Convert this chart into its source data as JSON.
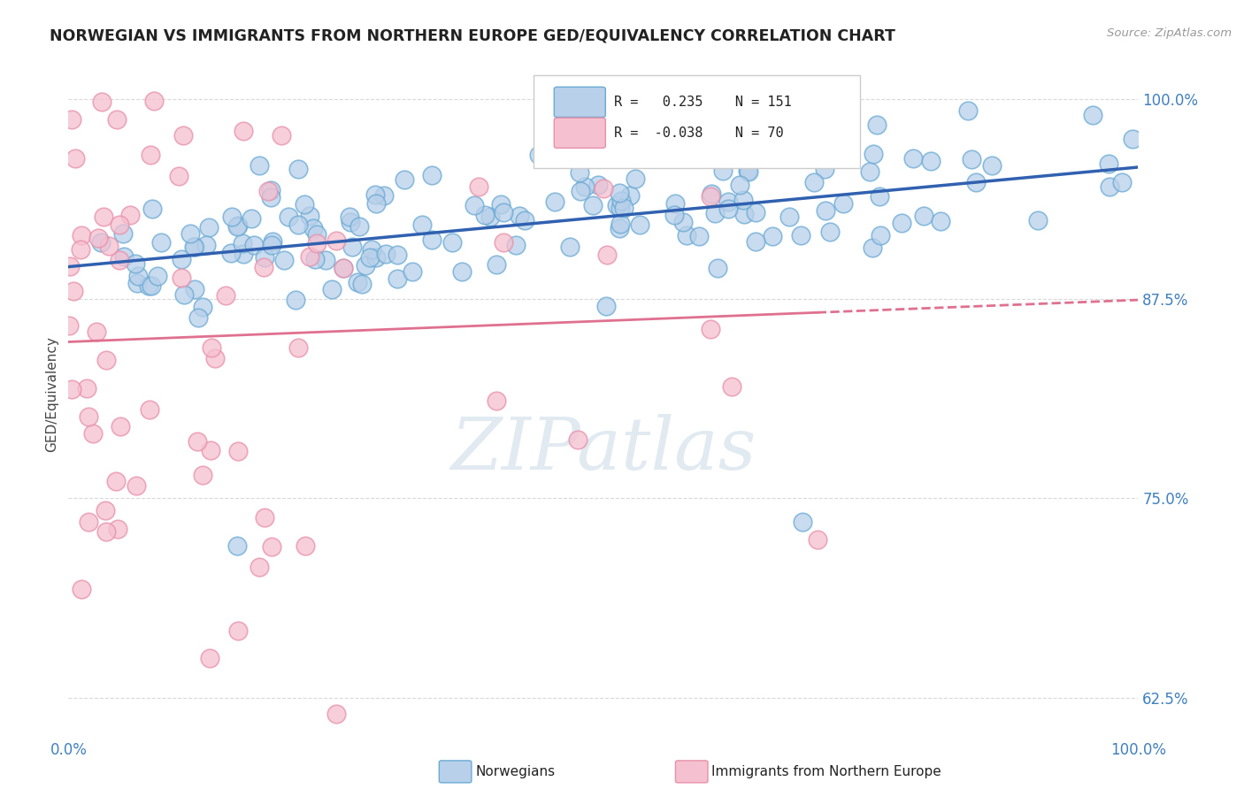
{
  "title": "NORWEGIAN VS IMMIGRANTS FROM NORTHERN EUROPE GED/EQUIVALENCY CORRELATION CHART",
  "source": "Source: ZipAtlas.com",
  "ylabel": "GED/Equivalency",
  "xlim": [
    0.0,
    1.0
  ],
  "ylim": [
    0.6,
    1.03
  ],
  "yticks": [
    0.625,
    0.75,
    0.875,
    1.0
  ],
  "ytick_labels": [
    "62.5%",
    "75.0%",
    "87.5%",
    "100.0%"
  ],
  "xticks": [
    0.0,
    1.0
  ],
  "xtick_labels": [
    "0.0%",
    "100.0%"
  ],
  "r_norwegian": 0.235,
  "n_norwegian": 151,
  "r_immigrants": -0.038,
  "n_immigrants": 70,
  "norwegian_color": "#b8d0ea",
  "norwegian_edge": "#6aaad4",
  "immigrant_color": "#f5c0d0",
  "immigrant_edge": "#e890aa",
  "trend_norwegian_color": "#3060b0",
  "trend_immigrant_color": "#e07090",
  "background_color": "#ffffff",
  "watermark": "ZIPatlas",
  "grid_color": "#d0d0d0",
  "title_color": "#222222",
  "axis_label_color": "#444444",
  "tick_label_color": "#4080c0",
  "legend_box_color": "#f8f8f8",
  "legend_edge_color": "#cccccc"
}
